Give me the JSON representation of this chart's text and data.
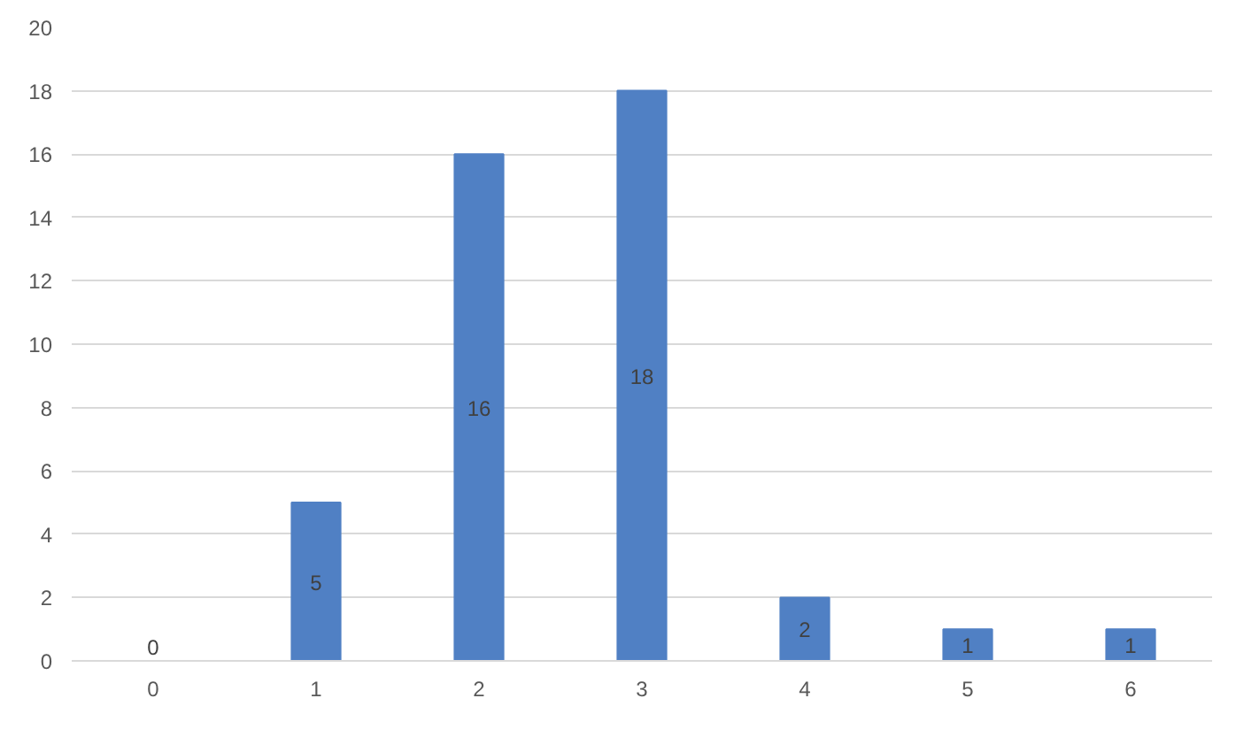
{
  "chart_data": {
    "type": "bar",
    "categories": [
      "0",
      "1",
      "2",
      "3",
      "4",
      "5",
      "6"
    ],
    "values": [
      0,
      5,
      16,
      18,
      2,
      1,
      1
    ],
    "color": "#5080c4",
    "ylim": [
      0,
      20
    ],
    "yticks": [
      0,
      2,
      4,
      6,
      8,
      10,
      12,
      14,
      16,
      18,
      20
    ],
    "grid": "y",
    "data_labels": true
  }
}
